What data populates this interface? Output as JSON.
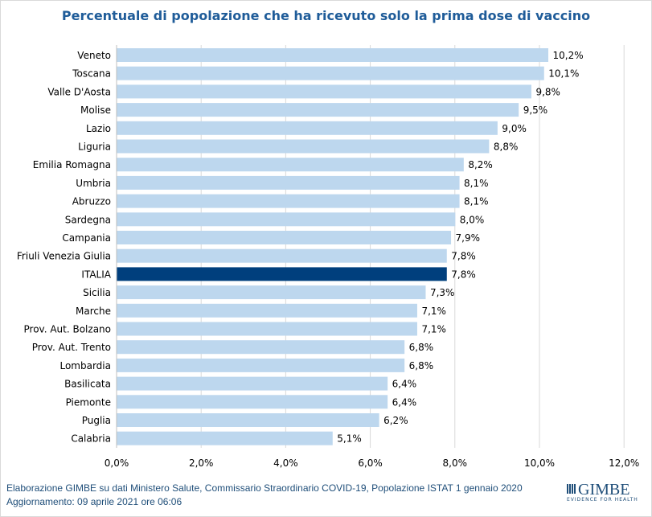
{
  "chart_data": {
    "type": "bar",
    "orientation": "horizontal",
    "title": "Percentuale di popolazione che ha ricevuto solo la prima dose di vaccino",
    "categories": [
      "Veneto",
      "Toscana",
      "Valle D'Aosta",
      "Molise",
      "Lazio",
      "Liguria",
      "Emilia Romagna",
      "Umbria",
      "Abruzzo",
      "Sardegna",
      "Campania",
      "Friuli Venezia Giulia",
      "ITALIA",
      "Sicilia",
      "Marche",
      "Prov. Aut. Bolzano",
      "Prov. Aut. Trento",
      "Lombardia",
      "Basilicata",
      "Piemonte",
      "Puglia",
      "Calabria"
    ],
    "values": [
      10.2,
      10.1,
      9.8,
      9.5,
      9.0,
      8.8,
      8.2,
      8.1,
      8.1,
      8.0,
      7.9,
      7.8,
      7.8,
      7.3,
      7.1,
      7.1,
      6.8,
      6.8,
      6.4,
      6.4,
      6.2,
      5.1
    ],
    "data_labels": [
      "10,2%",
      "10,1%",
      "9,8%",
      "9,5%",
      "9,0%",
      "8,8%",
      "8,2%",
      "8,1%",
      "8,1%",
      "8,0%",
      "7,9%",
      "7,8%",
      "7,8%",
      "7,3%",
      "7,1%",
      "7,1%",
      "6,8%",
      "6,8%",
      "6,4%",
      "6,4%",
      "6,2%",
      "5,1%"
    ],
    "xlim": [
      0,
      12
    ],
    "xticks": [
      0,
      2,
      4,
      6,
      8,
      10,
      12
    ],
    "xtick_labels": [
      "0,0%",
      "2,0%",
      "4,0%",
      "6,0%",
      "8,0%",
      "10,0%",
      "12,0%"
    ],
    "grid": "vertical",
    "colors": {
      "bar": "#bdd7ee",
      "highlight": "#003f7d",
      "grid": "#d9d9d9"
    },
    "highlight_category": "ITALIA"
  },
  "footer": {
    "source": "Elaborazione GIMBE su dati Ministero Salute, Commissario  Straordinario COVID-19, Popolazione  ISTAT 1 gennaio 2020",
    "updated": "Aggiornamento: 09 aprile 2021 ore 06:06",
    "logo_text": "GIMBE",
    "logo_tagline": "EVIDENCE FOR HEALTH"
  }
}
